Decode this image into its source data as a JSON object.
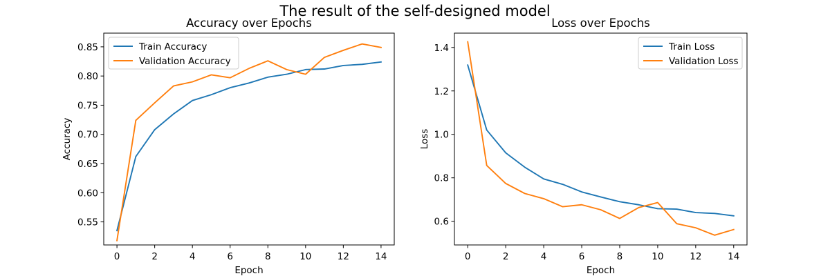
{
  "figure": {
    "title": "The result of the self-designed model",
    "colors": {
      "train": "#1f77b4",
      "validation": "#ff7f0e",
      "axis": "#000000",
      "legend_border": "#cccccc"
    }
  },
  "chart_data": [
    {
      "type": "line",
      "title": "Accuracy over Epochs",
      "xlabel": "Epoch",
      "ylabel": "Accuracy",
      "xlim": [
        -0.7,
        14.7
      ],
      "ylim": [
        0.5105,
        0.8735
      ],
      "xticks": [
        0,
        2,
        4,
        6,
        8,
        10,
        12,
        14
      ],
      "yticks": [
        0.55,
        0.6,
        0.65,
        0.7,
        0.75,
        0.8,
        0.85
      ],
      "ytick_labels": [
        "0.55",
        "0.60",
        "0.65",
        "0.70",
        "0.75",
        "0.80",
        "0.85"
      ],
      "grid": false,
      "legend": "upper-left",
      "x": [
        0,
        1,
        2,
        3,
        4,
        5,
        6,
        7,
        8,
        9,
        10,
        11,
        12,
        13,
        14
      ],
      "series": [
        {
          "name": "Train Accuracy",
          "color": "#1f77b4",
          "values": [
            0.535,
            0.662,
            0.708,
            0.735,
            0.758,
            0.768,
            0.78,
            0.788,
            0.798,
            0.803,
            0.811,
            0.812,
            0.818,
            0.82,
            0.824
          ]
        },
        {
          "name": "Validation Accuracy",
          "color": "#ff7f0e",
          "values": [
            0.518,
            0.724,
            0.754,
            0.783,
            0.79,
            0.802,
            0.797,
            0.813,
            0.826,
            0.811,
            0.803,
            0.832,
            0.844,
            0.855,
            0.849
          ]
        }
      ]
    },
    {
      "type": "line",
      "title": "Loss over Epochs",
      "xlabel": "Epoch",
      "ylabel": "Loss",
      "xlim": [
        -0.7,
        14.7
      ],
      "ylim": [
        0.491,
        1.466
      ],
      "xticks": [
        0,
        2,
        4,
        6,
        8,
        10,
        12,
        14
      ],
      "yticks": [
        0.6,
        0.8,
        1.0,
        1.2,
        1.4
      ],
      "ytick_labels": [
        "0.6",
        "0.8",
        "1.0",
        "1.2",
        "1.4"
      ],
      "grid": false,
      "legend": "upper-right",
      "x": [
        0,
        1,
        2,
        3,
        4,
        5,
        6,
        7,
        8,
        9,
        10,
        11,
        12,
        13,
        14
      ],
      "series": [
        {
          "name": "Train Loss",
          "color": "#1f77b4",
          "values": [
            1.319,
            1.02,
            0.915,
            0.849,
            0.795,
            0.77,
            0.735,
            0.712,
            0.69,
            0.676,
            0.658,
            0.656,
            0.64,
            0.636,
            0.625
          ]
        },
        {
          "name": "Validation Loss",
          "color": "#ff7f0e",
          "values": [
            1.426,
            0.857,
            0.774,
            0.728,
            0.704,
            0.667,
            0.676,
            0.653,
            0.613,
            0.663,
            0.686,
            0.589,
            0.57,
            0.536,
            0.562
          ]
        }
      ]
    }
  ]
}
